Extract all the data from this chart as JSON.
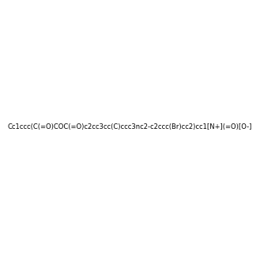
{
  "smiles": "Cc1ccc(C(=O)COC(=O)c2cc3cc(C)ccc3nc2-c2ccc(Br)cc2)cc1[N+](=O)[O-]",
  "image_size": 300,
  "background_color": "#e8e8e8"
}
